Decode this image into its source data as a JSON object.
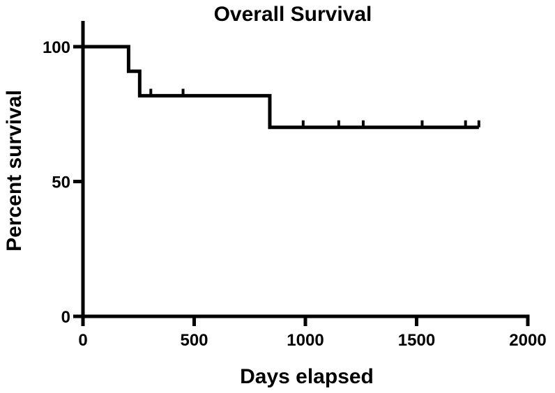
{
  "chart_data": {
    "type": "line",
    "subtype": "kaplan-meier-step",
    "title": "Overall Survival",
    "xlabel": "Days elapsed",
    "ylabel": "Percent survival",
    "xlim": [
      0,
      2000
    ],
    "ylim": [
      0,
      100
    ],
    "xticks": [
      0,
      500,
      1000,
      1500,
      2000
    ],
    "yticks": [
      0,
      50,
      100
    ],
    "grid": false,
    "legend": "none",
    "series": [
      {
        "color": "#000000",
        "steps": [
          {
            "x": 0,
            "y": 100
          },
          {
            "x": 205,
            "y": 90.9
          },
          {
            "x": 255,
            "y": 81.8
          },
          {
            "x": 840,
            "y": 70.1
          },
          {
            "x": 1780,
            "y": 70.1
          }
        ],
        "censored": [
          {
            "x": 305,
            "y": 81.8
          },
          {
            "x": 450,
            "y": 81.8
          },
          {
            "x": 990,
            "y": 70.1
          },
          {
            "x": 1150,
            "y": 70.1
          },
          {
            "x": 1260,
            "y": 70.1
          },
          {
            "x": 1525,
            "y": 70.1
          },
          {
            "x": 1720,
            "y": 70.1
          },
          {
            "x": 1780,
            "y": 70.1
          }
        ]
      }
    ]
  }
}
